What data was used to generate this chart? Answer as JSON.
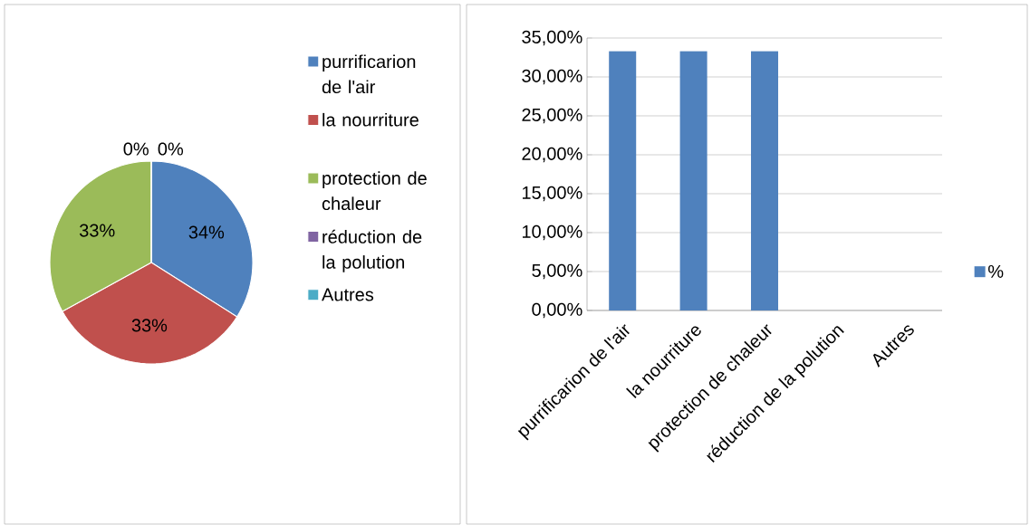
{
  "chart_data": [
    {
      "type": "pie",
      "categories": [
        "purrificarion de l'air",
        "la nourriture",
        "protection de chaleur",
        "réduction de la polution",
        "Autres"
      ],
      "values": [
        34,
        33,
        33,
        0,
        0
      ],
      "colors": [
        "#4f81bd",
        "#c0504d",
        "#9bbb59",
        "#8064a2",
        "#4bacc6"
      ],
      "value_labels": [
        "34%",
        "33%",
        "33%",
        "0%",
        "0%"
      ],
      "legend": "right"
    },
    {
      "type": "bar",
      "categories": [
        "purrificarion de l'air",
        "la nourriture",
        "protection de chaleur",
        "réduction de la polution",
        "Autres"
      ],
      "series": [
        {
          "name": "%",
          "color": "#4f81bd",
          "values": [
            33.3,
            33.3,
            33.3,
            0,
            0
          ]
        }
      ],
      "ylim": [
        0,
        35
      ],
      "yticks": [
        {
          "value": 0,
          "label": "0,00%"
        },
        {
          "value": 5,
          "label": "5,00%"
        },
        {
          "value": 10,
          "label": "10,00%"
        },
        {
          "value": 15,
          "label": "15,00%"
        },
        {
          "value": 20,
          "label": "20,00%"
        },
        {
          "value": 25,
          "label": "25,00%"
        },
        {
          "value": 30,
          "label": "30,00%"
        },
        {
          "value": 35,
          "label": "35,00%"
        }
      ],
      "grid": "y",
      "legend": "right"
    }
  ]
}
